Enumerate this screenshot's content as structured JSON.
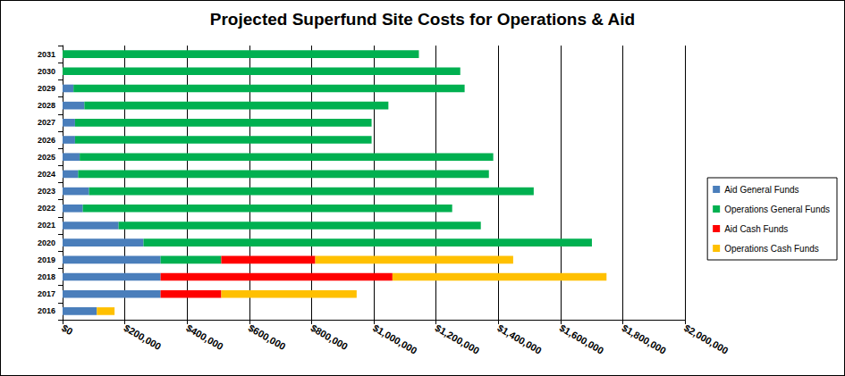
{
  "chart_data": {
    "type": "bar",
    "title": "Projected Superfund Site Costs for Operations & Aid",
    "orientation": "horizontal",
    "stacked": true,
    "grid": true,
    "legend": "right",
    "categories": [
      "2016",
      "2017",
      "2018",
      "2019",
      "2020",
      "2021",
      "2022",
      "2023",
      "2024",
      "2025",
      "2026",
      "2027",
      "2028",
      "2029",
      "2030",
      "2031"
    ],
    "series": [
      {
        "name": "Aid General Funds",
        "color": "#4a7ebb",
        "values": [
          110000,
          315000,
          315000,
          315000,
          260000,
          180000,
          65000,
          85000,
          50000,
          55000,
          40000,
          40000,
          70000,
          35000,
          0,
          0
        ]
      },
      {
        "name": "Operations General Funds",
        "color": "#00b050",
        "values": [
          0,
          0,
          0,
          195000,
          1441000,
          1164000,
          1187000,
          1429000,
          1320000,
          1329000,
          953000,
          953000,
          977000,
          1257000,
          1278000,
          1145000
        ]
      },
      {
        "name": "Aid Cash Funds",
        "color": "#ff0000",
        "values": [
          0,
          195000,
          745000,
          302000,
          0,
          0,
          0,
          0,
          0,
          0,
          0,
          0,
          0,
          0,
          0,
          0
        ]
      },
      {
        "name": "Operations Cash Funds",
        "color": "#ffc000",
        "values": [
          57000,
          435000,
          688000,
          636000,
          0,
          0,
          0,
          0,
          0,
          0,
          0,
          0,
          0,
          0,
          0,
          0
        ]
      }
    ],
    "xlim": [
      0,
      2000000
    ],
    "xticks": [
      {
        "value": 0,
        "label": "$0"
      },
      {
        "value": 200000,
        "label": "$200,000"
      },
      {
        "value": 400000,
        "label": "$400,000"
      },
      {
        "value": 600000,
        "label": "$600,000"
      },
      {
        "value": 800000,
        "label": "$800,000"
      },
      {
        "value": 1000000,
        "label": "$1,000,000"
      },
      {
        "value": 1200000,
        "label": "$1,200,000"
      },
      {
        "value": 1400000,
        "label": "$1,400,000"
      },
      {
        "value": 1600000,
        "label": "$1,600,000"
      },
      {
        "value": 1800000,
        "label": "$1,800,000"
      },
      {
        "value": 2000000,
        "label": "$2,000,000"
      }
    ]
  }
}
